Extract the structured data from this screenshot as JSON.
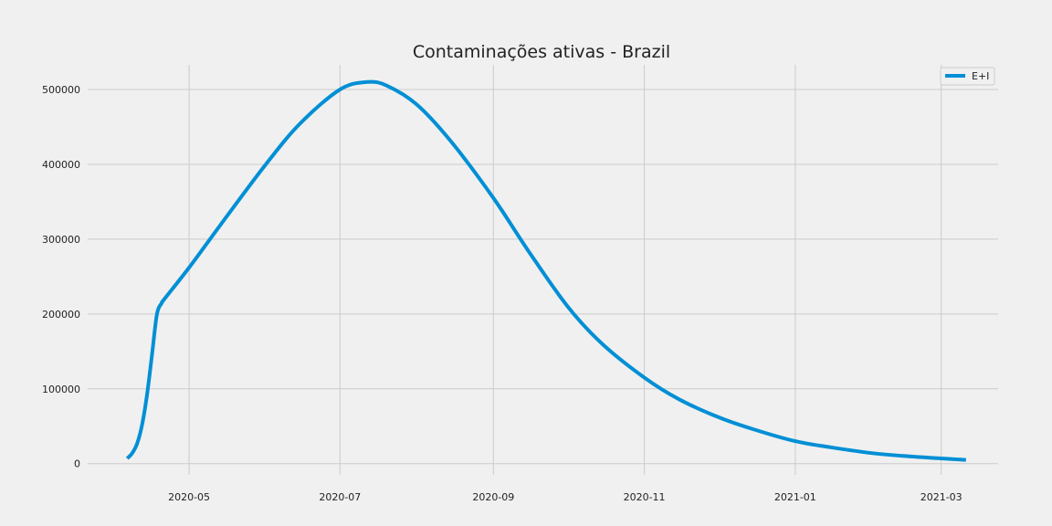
{
  "colors": {
    "background": "#f0f0f0",
    "grid": "#cbcbcb",
    "series_line": "#008fd5"
  },
  "chart_data": {
    "type": "line",
    "title": "Contaminações ativas - Brazil",
    "xlabel": "",
    "ylabel": "",
    "grid": true,
    "legend_position": "top-right",
    "x_axis": {
      "type": "date",
      "range": [
        "2020-03-21",
        "2021-03-24"
      ],
      "tick_labels": [
        "2020-05",
        "2020-07",
        "2020-09",
        "2020-11",
        "2021-01",
        "2021-03"
      ],
      "tick_dates": [
        "2020-05-01",
        "2020-07-01",
        "2020-09-01",
        "2020-11-01",
        "2021-01-01",
        "2021-03-01"
      ]
    },
    "y_axis": {
      "range": [
        -15000,
        533000
      ],
      "tick_labels": [
        "0",
        "100000",
        "200000",
        "300000",
        "400000",
        "500000"
      ],
      "tick_values": [
        0,
        100000,
        200000,
        300000,
        400000,
        500000
      ]
    },
    "series": [
      {
        "name": "E+I",
        "x": [
          "2020-04-06",
          "2020-04-08",
          "2020-04-10",
          "2020-04-12",
          "2020-04-14",
          "2020-04-16",
          "2020-04-18",
          "2020-04-20",
          "2020-04-21",
          "2020-05-01",
          "2020-05-15",
          "2020-06-01",
          "2020-06-15",
          "2020-07-01",
          "2020-07-12",
          "2020-07-20",
          "2020-08-01",
          "2020-08-15",
          "2020-09-01",
          "2020-09-15",
          "2020-10-01",
          "2020-10-15",
          "2020-11-01",
          "2020-11-15",
          "2020-12-01",
          "2020-12-15",
          "2021-01-01",
          "2021-01-15",
          "2021-02-01",
          "2021-02-15",
          "2021-03-01",
          "2021-03-11"
        ],
        "y": [
          7000,
          14000,
          27000,
          52000,
          92000,
          145000,
          200000,
          215000,
          220000,
          262000,
          325000,
          400000,
          455000,
          500000,
          510000,
          505000,
          480000,
          430000,
          355000,
          285000,
          210000,
          160000,
          115000,
          86000,
          62000,
          46000,
          30000,
          22000,
          14000,
          10000,
          7000,
          5000
        ]
      }
    ]
  }
}
